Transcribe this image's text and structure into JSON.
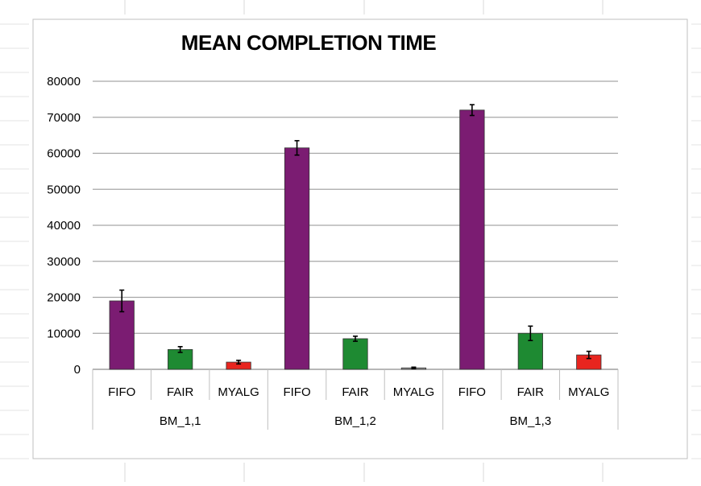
{
  "chart_data": {
    "type": "bar",
    "title": "MEAN COMPLETION TIME",
    "xlabel": "",
    "ylabel": "",
    "ylim": [
      0,
      80000
    ],
    "yticks": [
      0,
      10000,
      20000,
      30000,
      40000,
      50000,
      60000,
      70000,
      80000
    ],
    "grid": true,
    "legend": "none",
    "groups": [
      {
        "name": "BM_1,1",
        "bars": [
          {
            "label": "FIFO",
            "value": 19000,
            "error": 3000,
            "color": "#7B1C72"
          },
          {
            "label": "FAIR",
            "value": 5500,
            "error": 800,
            "color": "#1E8A32"
          },
          {
            "label": "MYALG",
            "value": 2000,
            "error": 500,
            "color": "#E8251F"
          }
        ]
      },
      {
        "name": "BM_1,2",
        "bars": [
          {
            "label": "FIFO",
            "value": 61500,
            "error": 2000,
            "color": "#7B1C72"
          },
          {
            "label": "FAIR",
            "value": 8500,
            "error": 700,
            "color": "#1E8A32"
          },
          {
            "label": "MYALG",
            "value": 400,
            "error": 200,
            "color": "#9A9A9A"
          }
        ]
      },
      {
        "name": "BM_1,3",
        "bars": [
          {
            "label": "FIFO",
            "value": 72000,
            "error": 1500,
            "color": "#7B1C72"
          },
          {
            "label": "FAIR",
            "value": 10000,
            "error": 2000,
            "color": "#1E8A32"
          },
          {
            "label": "MYALG",
            "value": 4000,
            "error": 1000,
            "color": "#E8251F"
          }
        ]
      }
    ]
  }
}
